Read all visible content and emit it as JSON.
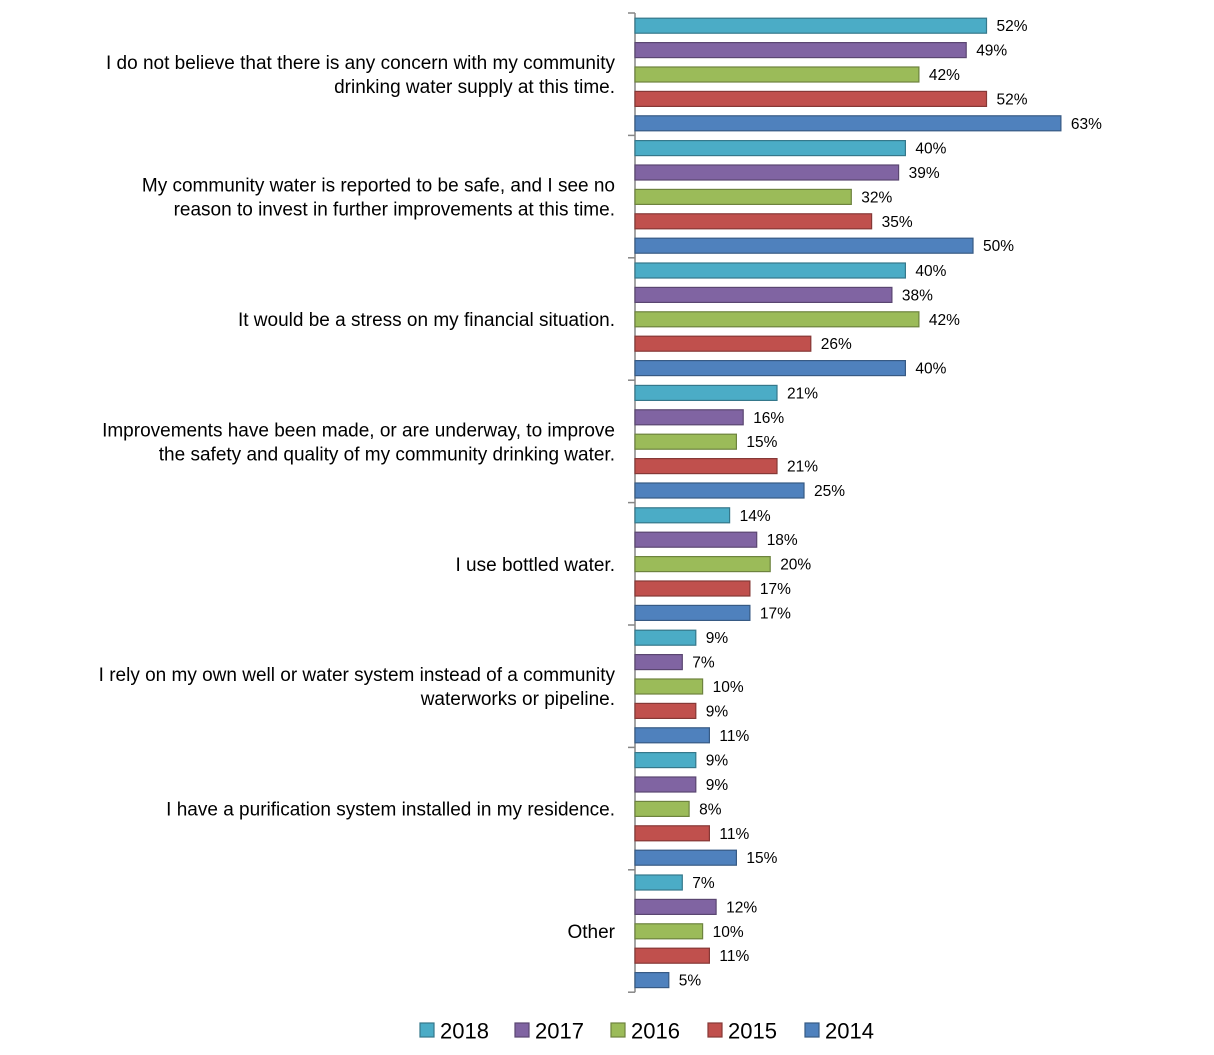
{
  "chart_data": {
    "type": "bar",
    "orientation": "horizontal",
    "categories": [
      [
        "I do not believe that there is any concern with my community",
        "drinking water supply at this time."
      ],
      [
        "My community water is reported to be safe, and I see no",
        "reason to invest in further improvements at this time."
      ],
      [
        "It would be a stress on my financial situation."
      ],
      [
        "Improvements have been made, or are underway, to improve",
        "the safety and quality of my community drinking water."
      ],
      [
        "I use bottled water."
      ],
      [
        "I rely on my own well or water system instead of a community",
        "waterworks or pipeline."
      ],
      [
        "I have a purification system installed in my residence."
      ],
      [
        "Other"
      ]
    ],
    "series": [
      {
        "name": "2018",
        "color": "#4BACC6",
        "values": [
          52,
          40,
          40,
          21,
          14,
          9,
          9,
          7
        ]
      },
      {
        "name": "2017",
        "color": "#8064A2",
        "values": [
          49,
          39,
          38,
          16,
          18,
          7,
          9,
          12
        ]
      },
      {
        "name": "2016",
        "color": "#9BBB59",
        "values": [
          42,
          32,
          42,
          15,
          20,
          10,
          8,
          10
        ]
      },
      {
        "name": "2015",
        "color": "#C0504D",
        "values": [
          52,
          35,
          26,
          21,
          17,
          9,
          11,
          11
        ]
      },
      {
        "name": "2014",
        "color": "#4F81BD",
        "values": [
          63,
          50,
          40,
          25,
          17,
          11,
          15,
          5
        ]
      }
    ],
    "value_suffix": "%",
    "xlim": [
      0,
      100
    ],
    "legend": "bottom",
    "grid": false,
    "title": "",
    "xlabel": "",
    "ylabel": ""
  }
}
